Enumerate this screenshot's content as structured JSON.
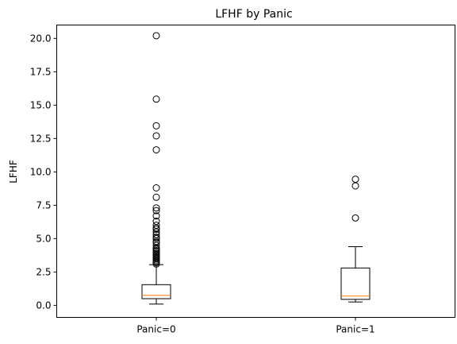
{
  "chart_data": {
    "type": "box",
    "title": "LFHF by Panic",
    "xlabel": "",
    "ylabel": "LFHF",
    "ylim": [
      -0.9,
      21.0
    ],
    "yticks": [
      "0.0",
      "2.5",
      "5.0",
      "7.5",
      "10.0",
      "12.5",
      "15.0",
      "17.5",
      "20.0"
    ],
    "categories": [
      "Panic=0",
      "Panic=1"
    ],
    "grid": false,
    "colors": {
      "box": "#000000",
      "median": "#ff7f0e",
      "flier": "#000000",
      "background": "#ffffff"
    },
    "boxes": [
      {
        "label": "Panic=0",
        "whisker_low": 0.1,
        "q1": 0.5,
        "median": 0.75,
        "q3": 1.55,
        "whisker_high": 3.05,
        "outliers": [
          3.1,
          3.2,
          3.3,
          3.4,
          3.5,
          3.6,
          3.7,
          3.8,
          3.9,
          4.0,
          4.1,
          4.2,
          4.3,
          4.5,
          4.7,
          4.8,
          5.0,
          5.1,
          5.3,
          5.5,
          5.7,
          5.8,
          6.0,
          6.3,
          6.7,
          7.1,
          7.3,
          8.1,
          8.8,
          11.65,
          12.7,
          13.45,
          15.45,
          20.2
        ]
      },
      {
        "label": "Panic=1",
        "whisker_low": 0.25,
        "q1": 0.45,
        "median": 0.7,
        "q3": 2.8,
        "whisker_high": 4.4,
        "outliers": [
          6.55,
          8.95,
          9.45
        ]
      }
    ]
  }
}
